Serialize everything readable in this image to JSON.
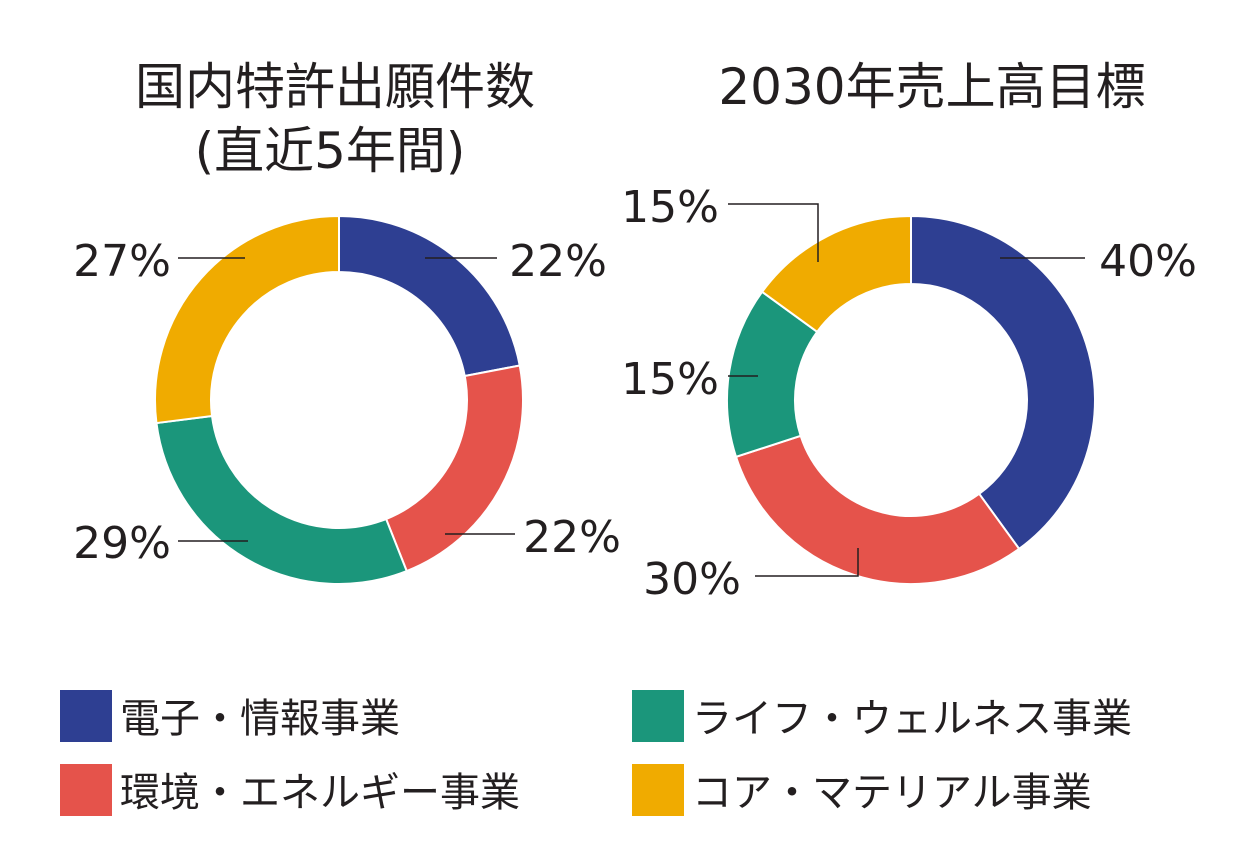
{
  "chart_data": [
    {
      "type": "pie",
      "title": "国内特許出願件数",
      "subtitle": "(直近5年間)",
      "categories": [
        "電子・情報事業",
        "環境・エネルギー事業",
        "ライフ・ウェルネス事業",
        "コア・マテリアル事業"
      ],
      "values": [
        22,
        22,
        29,
        27
      ],
      "labels": [
        "22%",
        "22%",
        "29%",
        "27%"
      ],
      "donut": true
    },
    {
      "type": "pie",
      "title": "2030年売上高目標",
      "categories": [
        "電子・情報事業",
        "環境・エネルギー事業",
        "ライフ・ウェルネス事業",
        "コア・マテリアル事業"
      ],
      "values": [
        40,
        30,
        15,
        15
      ],
      "labels": [
        "40%",
        "30%",
        "15%",
        "15%"
      ],
      "donut": true
    }
  ],
  "legend": {
    "placement": "bottom",
    "items": [
      {
        "label": "電子・情報事業",
        "color": "#2e3f92"
      },
      {
        "label": "ライフ・ウェルネス事業",
        "color": "#1b967b"
      },
      {
        "label": "環境・エネルギー事業",
        "color": "#e5534b"
      },
      {
        "label": "コア・マテリアル事業",
        "color": "#f0ab00"
      }
    ]
  },
  "colors": [
    "#2e3f92",
    "#e5534b",
    "#1b967b",
    "#f0ab00"
  ]
}
